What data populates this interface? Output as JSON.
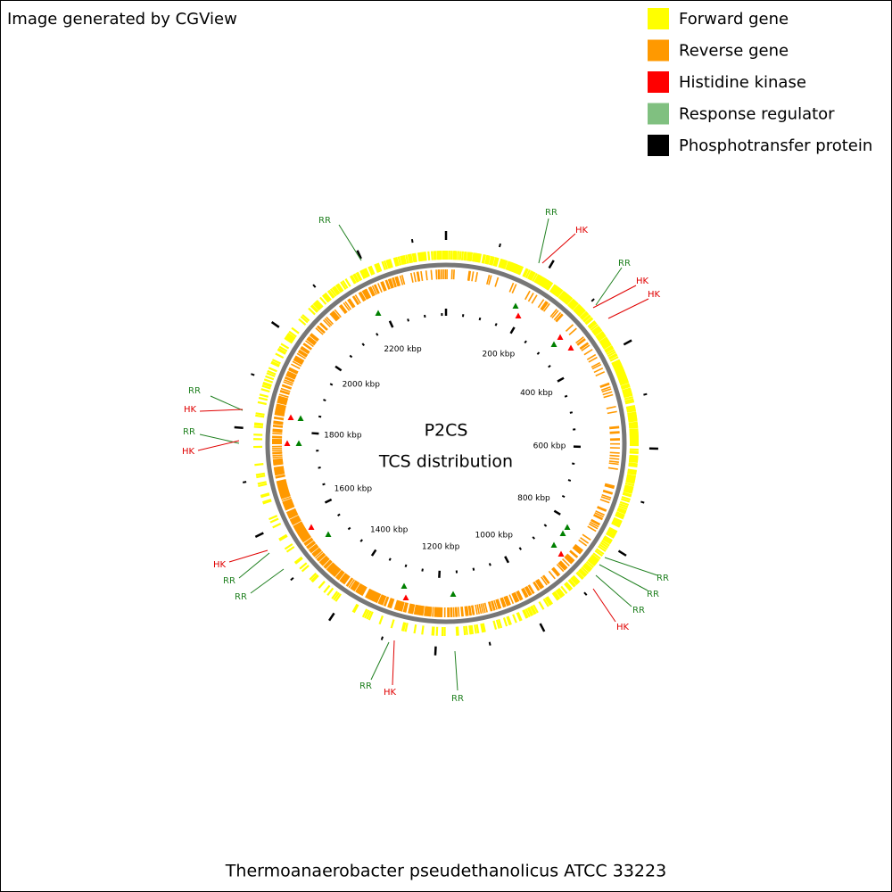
{
  "header": {
    "credit": "Image generated by CGView"
  },
  "legend": [
    {
      "label": "Forward gene",
      "color": "#ffff00"
    },
    {
      "label": "Reverse gene",
      "color": "#ff9900"
    },
    {
      "label": "Histidine kinase",
      "color": "#ff0000"
    },
    {
      "label": "Response regulator",
      "color": "#80c080"
    },
    {
      "label": "Phosphotransfer protein",
      "color": "#000000"
    }
  ],
  "center": {
    "title": "P2CS",
    "subtitle": "TCS distribution"
  },
  "ticks": [
    {
      "value": 200,
      "label": "200 kbp"
    },
    {
      "value": 400,
      "label": "400 kbp"
    },
    {
      "value": 600,
      "label": "600 kbp"
    },
    {
      "value": 800,
      "label": "800 kbp"
    },
    {
      "value": 1000,
      "label": "1000 kbp"
    },
    {
      "value": 1200,
      "label": "1200 kbp"
    },
    {
      "value": 1400,
      "label": "1400 kbp"
    },
    {
      "value": 1600,
      "label": "1600 kbp"
    },
    {
      "value": 1800,
      "label": "1800 kbp"
    },
    {
      "value": 2000,
      "label": "2000 kbp"
    },
    {
      "value": 2200,
      "label": "2200 kbp"
    }
  ],
  "features": [
    "RR",
    "RR",
    "HK",
    "RR",
    "HK",
    "HK",
    "RR",
    "HK",
    "RR",
    "HK",
    "RR",
    "RR",
    "RR",
    "HK",
    "HK",
    "RR",
    "RR",
    "RR",
    "HK",
    "RR"
  ],
  "footer": {
    "organism": "Thermoanaerobacter pseudethanolicus ATCC 33223"
  }
}
